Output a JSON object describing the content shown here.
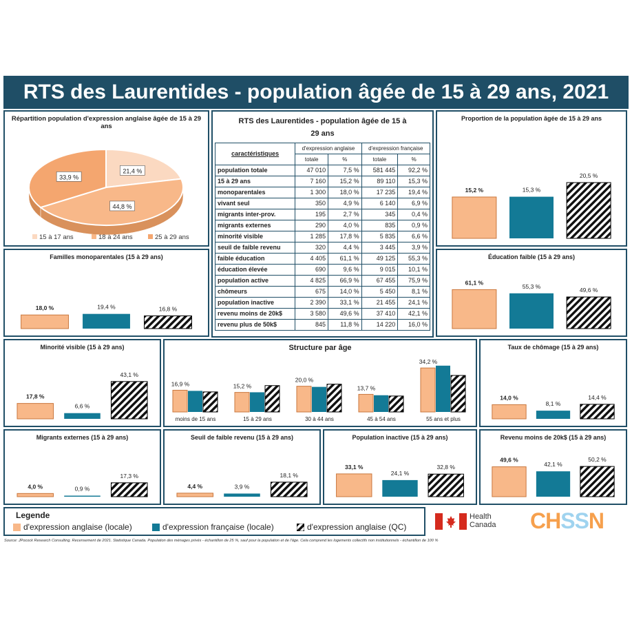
{
  "title": "RTS des Laurentides - population âgée de 15 à 29 ans, 2021",
  "colors": {
    "eng": "#f8b889",
    "fr": "#137a96",
    "qc": "hatch",
    "frame": "#1f4e66"
  },
  "table": {
    "title": "RTS des Laurentides - population âgée de 15 à 29 ans",
    "col_header": "caractéristiques",
    "group_eng": "d'expression anglaise",
    "group_fr": "d'expression française",
    "sub_total": "totale",
    "sub_pct": "%",
    "rows": [
      {
        "label": "population totale",
        "eng_total": "47 010",
        "eng_pct": "7,5 %",
        "fr_total": "581 445",
        "fr_pct": "92,2 %"
      },
      {
        "label": "15 à 29 ans",
        "eng_total": "7 160",
        "eng_pct": "15,2 %",
        "fr_total": "89 110",
        "fr_pct": "15,3 %"
      },
      {
        "label": "monoparentales",
        "eng_total": "1 300",
        "eng_pct": "18,0 %",
        "fr_total": "17 235",
        "fr_pct": "19,4 %"
      },
      {
        "label": "vivant seul",
        "eng_total": "350",
        "eng_pct": "4,9 %",
        "fr_total": "6 140",
        "fr_pct": "6,9 %"
      },
      {
        "label": "migrants inter-prov.",
        "eng_total": "195",
        "eng_pct": "2,7 %",
        "fr_total": "345",
        "fr_pct": "0,4 %"
      },
      {
        "label": "migrants externes",
        "eng_total": "290",
        "eng_pct": "4,0 %",
        "fr_total": "835",
        "fr_pct": "0,9 %"
      },
      {
        "label": "minorité visible",
        "eng_total": "1 285",
        "eng_pct": "17,8 %",
        "fr_total": "5 835",
        "fr_pct": "6,6 %"
      },
      {
        "label": "seuil de faible revenu",
        "eng_total": "320",
        "eng_pct": "4,4 %",
        "fr_total": "3 445",
        "fr_pct": "3,9 %"
      },
      {
        "label": "faible éducation",
        "eng_total": "4 405",
        "eng_pct": "61,1 %",
        "fr_total": "49 125",
        "fr_pct": "55,3 %"
      },
      {
        "label": "éducation élevée",
        "eng_total": "690",
        "eng_pct": "9,6 %",
        "fr_total": "9 015",
        "fr_pct": "10,1 %"
      },
      {
        "label": "population active",
        "eng_total": "4 825",
        "eng_pct": "66,9 %",
        "fr_total": "67 455",
        "fr_pct": "75,9 %"
      },
      {
        "label": "chômeurs",
        "eng_total": "675",
        "eng_pct": "14,0 %",
        "fr_total": "5 450",
        "fr_pct": "8,1 %"
      },
      {
        "label": "population inactive",
        "eng_total": "2 390",
        "eng_pct": "33,1 %",
        "fr_total": "21 455",
        "fr_pct": "24,1 %"
      },
      {
        "label": "revenu moins de 20k$",
        "eng_total": "3 580",
        "eng_pct": "49,6 %",
        "fr_total": "37 410",
        "fr_pct": "42,1 %"
      },
      {
        "label": "revenu plus de 50k$",
        "eng_total": "845",
        "eng_pct": "11,8 %",
        "fr_total": "14 220",
        "fr_pct": "16,0 %"
      }
    ]
  },
  "legend": {
    "title": "Legende",
    "eng": "d'expression anglaise (locale)",
    "fr": "d'expression française (locale)",
    "qc": "d'expression anglaise (QC)"
  },
  "logos": {
    "health_canada_1": "Health",
    "health_canada_2": "Canada",
    "chssn": "CHSSN"
  },
  "source": "Source: JPocock Research Consulting. Recensement de 2021. Statistique Canada. Population des ménages privés - échantillon de 25 %, sauf pour la population et de l'âge. Cela comprend les logements collectifs non institutionnels - échantillon de 100 %",
  "chart_data": [
    {
      "id": "pie",
      "type": "pie",
      "title": "Répartition population d'expression anglaise âgée de 15 à 29 ans",
      "categories": [
        "15 à 17 ans",
        "18 à 24 ans",
        "25 à 29 ans"
      ],
      "values": [
        21.4,
        44.8,
        33.9
      ],
      "labels": [
        "21,4 %",
        "44,8 %",
        "33,9 %"
      ],
      "colors": [
        "#fbd9c1",
        "#f8b889",
        "#f4a66f"
      ]
    },
    {
      "id": "proportion",
      "type": "bar",
      "title": "Proportion de la population âgée de 15 à 29 ans",
      "values": [
        15.2,
        15.3,
        20.5
      ],
      "labels": [
        "15,2 %",
        "15,3 %",
        "20,5 %"
      ]
    },
    {
      "id": "mono",
      "type": "bar",
      "title": "Familles monoparentales (15 à 29 ans)",
      "values": [
        18.0,
        19.4,
        16.8
      ],
      "labels": [
        "18,0 %",
        "19,4 %",
        "16,8 %"
      ]
    },
    {
      "id": "educ",
      "type": "bar",
      "title": "Éducation faible  (15 à 29 ans)",
      "values": [
        61.1,
        55.3,
        49.6
      ],
      "labels": [
        "61,1 %",
        "55,3 %",
        "49,6 %"
      ]
    },
    {
      "id": "minorite",
      "type": "bar",
      "title": "Minorité visible  (15 à 29 ans)",
      "values": [
        17.8,
        6.6,
        43.1
      ],
      "labels": [
        "17,8 %",
        "6,6 %",
        "43,1 %"
      ]
    },
    {
      "id": "structure",
      "type": "bar",
      "title": "Structure par âge",
      "categories": [
        "moins de 15 ans",
        "15 à 29 ans",
        "30 à 44 ans",
        "45 à 54 ans",
        "55 ans et plus"
      ],
      "series": [
        {
          "key": "eng",
          "values": [
            16.9,
            15.2,
            20.0,
            13.7,
            34.2
          ]
        },
        {
          "key": "fr",
          "values": [
            16.4,
            15.3,
            19.5,
            13.0,
            36.0
          ]
        },
        {
          "key": "qc",
          "values": [
            15.6,
            20.5,
            21.6,
            12.4,
            28.4
          ]
        }
      ],
      "labels": [
        "16,9 %",
        "15,2 %",
        "20,0 %",
        "13,7 %",
        "34,2 %"
      ]
    },
    {
      "id": "chomage",
      "type": "bar",
      "title": "Taux de chômage  (15 à 29 ans)",
      "values": [
        14.0,
        8.1,
        14.4
      ],
      "labels": [
        "14,0 %",
        "8,1 %",
        "14,4 %"
      ]
    },
    {
      "id": "migrants",
      "type": "bar",
      "title": "Migrants externes  (15 à 29 ans)",
      "values": [
        4.0,
        0.9,
        17.3
      ],
      "labels": [
        "4,0 %",
        "0,9 %",
        "17,3 %"
      ]
    },
    {
      "id": "seuil",
      "type": "bar",
      "title": "Seuil de faible revenu  (15 à 29 ans)",
      "values": [
        4.4,
        3.9,
        18.1
      ],
      "labels": [
        "4,4 %",
        "3,9 %",
        "18,1 %"
      ]
    },
    {
      "id": "inactive",
      "type": "bar",
      "title": "Population inactive  (15 à 29 ans)",
      "values": [
        33.1,
        24.1,
        32.8
      ],
      "labels": [
        "33,1 %",
        "24,1 %",
        "32,8 %"
      ]
    },
    {
      "id": "revenu",
      "type": "bar",
      "title": "Revenu moins de 20k$  (15 à 29 ans)",
      "values": [
        49.6,
        42.1,
        50.2
      ],
      "labels": [
        "49,6 %",
        "42,1 %",
        "50,2 %"
      ]
    }
  ]
}
